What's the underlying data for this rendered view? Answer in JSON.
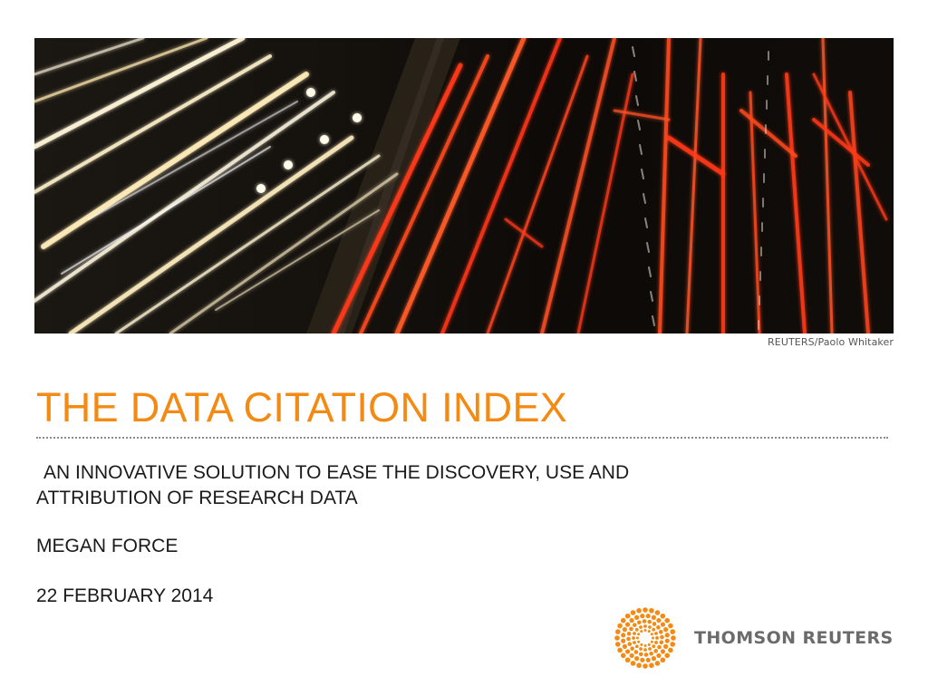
{
  "photo": {
    "credit": "REUTERS/Paolo Whitaker"
  },
  "slide": {
    "title": "THE DATA CITATION INDEX",
    "subtitle_line1": "AN INNOVATIVE SOLUTION TO EASE THE DISCOVERY, USE AND",
    "subtitle_line2": "ATTRIBUTION OF RESEARCH DATA",
    "presenter": "MEGAN FORCE",
    "date": "22 FEBRUARY 2014"
  },
  "brand": {
    "name": "THOMSON REUTERS",
    "logo_icon": "thomson-reuters-dot-logo",
    "accent_color": "#f28a14",
    "text_color": "#6b6b6b"
  }
}
